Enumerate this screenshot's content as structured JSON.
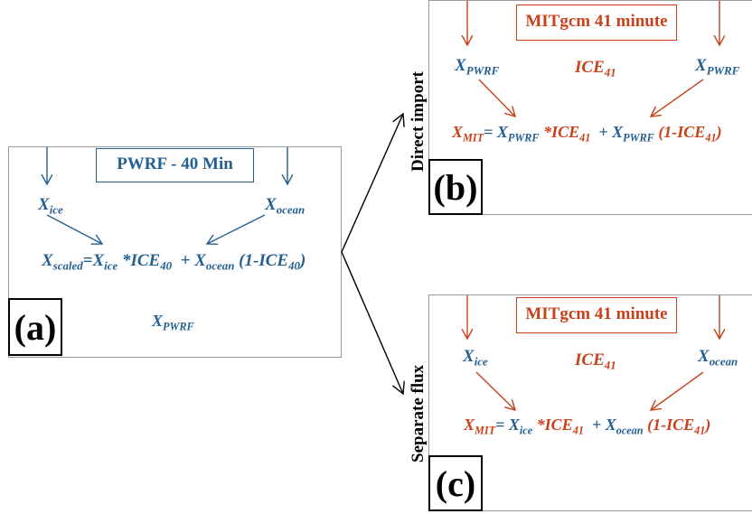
{
  "colors": {
    "blue": "#245f91",
    "red": "#c8411b"
  },
  "panel_a": {
    "label": "(a)",
    "title": "PWRF - 40 Min",
    "x_ice": {
      "base": "X",
      "sub": "ice"
    },
    "x_ocean": {
      "base": "X",
      "sub": "ocean"
    },
    "equation": {
      "t1": "X",
      "t1sub": "scaled",
      "t2": "=X",
      "t2sub": "ice",
      "t3": " *ICE",
      "t3sub": "40",
      "t4": "  + X",
      "t4sub": "ocean",
      "t5": " (1-ICE",
      "t5sub": "40",
      "t6": ")"
    },
    "result": {
      "base": "X",
      "sub": "PWRF"
    }
  },
  "panel_b": {
    "label": "(b)",
    "side_label": "Direct import",
    "title": "MITgcm 41 minute",
    "left_input": {
      "base": "X",
      "sub": "PWRF"
    },
    "center": {
      "base": "ICE",
      "sub": "41"
    },
    "right_input": {
      "base": "X",
      "sub": "PWRF"
    },
    "equation": {
      "t1": "X",
      "t1sub": "MIT",
      "t2": "= X",
      "t2sub": "PWRF",
      "t3": " *ICE",
      "t3sub": "41",
      "t4": "  + X",
      "t4sub": "PWRF",
      "t5": " (1-ICE",
      "t5sub": "41",
      "t6": ")"
    }
  },
  "panel_c": {
    "label": "(c)",
    "side_label": "Separate flux",
    "title": "MITgcm 41 minute",
    "left_input": {
      "base": "X",
      "sub": "ice"
    },
    "center": {
      "base": "ICE",
      "sub": "41"
    },
    "right_input": {
      "base": "X",
      "sub": "ocean"
    },
    "equation": {
      "t1": "X",
      "t1sub": "MIT",
      "t2": "= X",
      "t2sub": "ice",
      "t3": " *ICE",
      "t3sub": "41",
      "t4": "  + X",
      "t4sub": "ocean",
      "t5": " (1-ICE",
      "t5sub": "41",
      "t6": ")"
    }
  }
}
